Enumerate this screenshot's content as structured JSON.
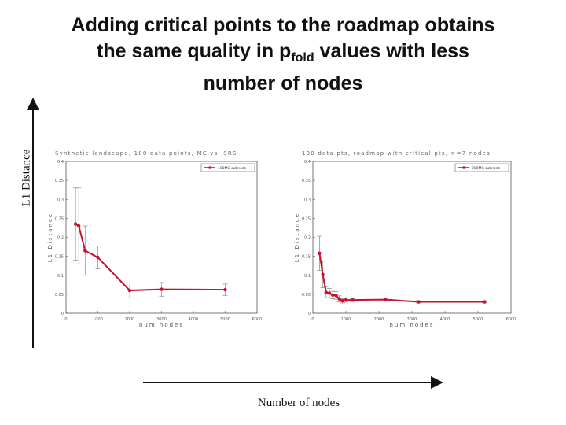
{
  "slide": {
    "title_line1": "Adding critical points to the roadmap obtains",
    "title_line2_pre": "the same quality in p",
    "title_line2_sub": "fold",
    "title_line2_post": " values with less",
    "title_line3": "number of nodes",
    "y_axis_label": "L1 Distance",
    "x_axis_label": "Number of nodes"
  },
  "chart_data": [
    {
      "type": "line",
      "title": "Synthetic landscape, 100 data points, MC vs. SRS",
      "xlabel": "num nodes",
      "ylabel": "L1 Distance",
      "xlim": [
        0,
        6000
      ],
      "ylim": [
        0,
        0.4
      ],
      "xticks": [
        "0",
        "1000",
        "2000",
        "3000",
        "4000",
        "5000",
        "6000"
      ],
      "yticks": [
        "0",
        "0.05",
        "0.1",
        "0.15",
        "0.2",
        "0.25",
        "0.3",
        "0.35",
        "0.4"
      ],
      "grid": false,
      "legend_position": "top-right",
      "color": "#c8102e",
      "series": [
        {
          "name": "100MC subnode",
          "x": [
            300,
            400,
            600,
            1000,
            2000,
            3000,
            5000
          ],
          "y": [
            0.235,
            0.23,
            0.165,
            0.147,
            0.06,
            0.063,
            0.062
          ],
          "err": [
            0.095,
            0.1,
            0.065,
            0.03,
            0.02,
            0.018,
            0.015
          ]
        }
      ]
    },
    {
      "type": "line",
      "title": "100 data pts, roadmap with critical pts, >=7 nodes",
      "xlabel": "num nodes",
      "ylabel": "L1 Distance",
      "xlim": [
        0,
        6000
      ],
      "ylim": [
        0,
        0.4
      ],
      "xticks": [
        "0",
        "1000",
        "2000",
        "3000",
        "4000",
        "5000",
        "6000"
      ],
      "yticks": [
        "0",
        "0.05",
        "0.1",
        "0.15",
        "0.2",
        "0.25",
        "0.3",
        "0.35",
        "0.4"
      ],
      "grid": false,
      "legend_position": "top-right",
      "color": "#c8102e",
      "series": [
        {
          "name": "200MC subnode",
          "x": [
            200,
            300,
            400,
            500,
            600,
            700,
            800,
            900,
            1000,
            1200,
            2200,
            3200,
            5200
          ],
          "y": [
            0.158,
            0.102,
            0.055,
            0.053,
            0.048,
            0.047,
            0.038,
            0.033,
            0.035,
            0.035,
            0.036,
            0.03,
            0.03
          ],
          "err": [
            0.045,
            0.035,
            0.015,
            0.012,
            0.01,
            0.01,
            0.008,
            0.006,
            0.006,
            0.004,
            0.004,
            0.003,
            0.003
          ]
        }
      ]
    }
  ]
}
